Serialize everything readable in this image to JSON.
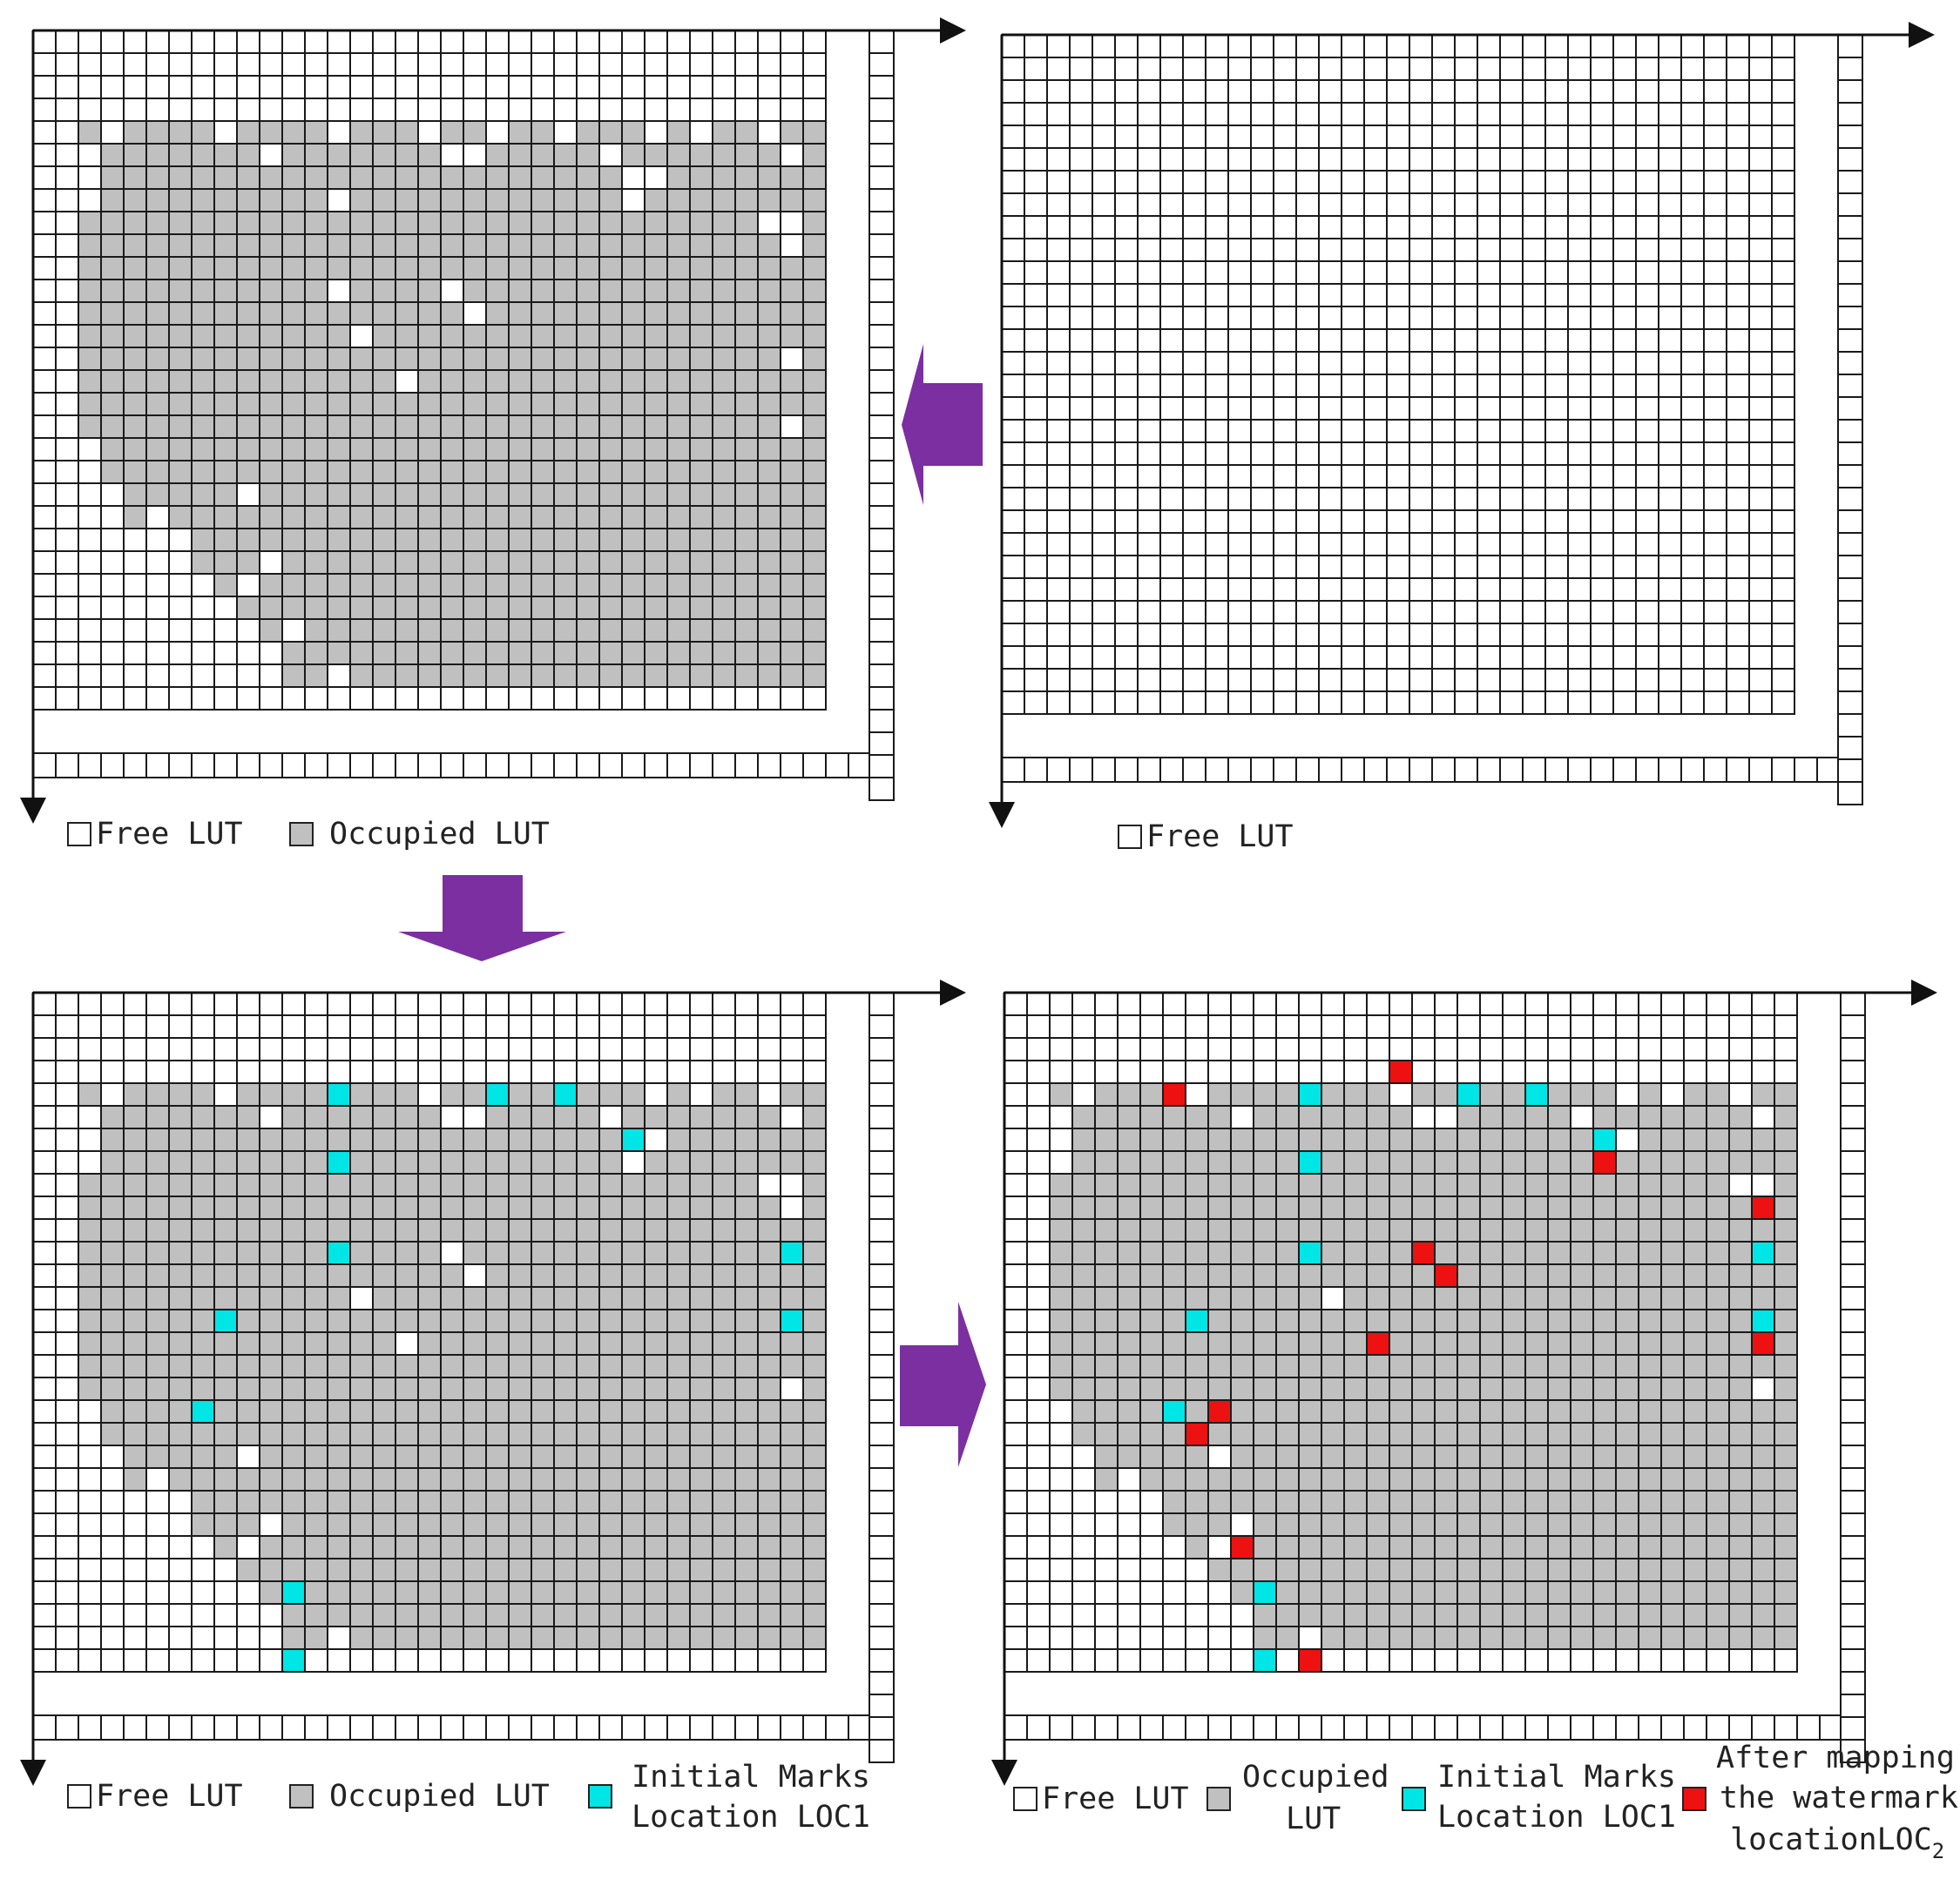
{
  "legends": {
    "top_left": {
      "free": "Free LUT",
      "occupied": "Occupied LUT"
    },
    "top_right": {
      "free": "Free LUT"
    },
    "bottom_left": {
      "free": "Free LUT",
      "occupied": "Occupied LUT",
      "initial_line1": "Initial Marks",
      "initial_line2": "Location LOC1"
    },
    "bottom_right": {
      "free": "Free LUT",
      "occupied_line1": "Occupied",
      "occupied_line2": "LUT",
      "initial_line1": "Initial Marks",
      "initial_line2": "Location LOC1",
      "after_line1": "After mapping",
      "after_line2": "the watermark",
      "after_line3": "locationLOC",
      "after_sub": "2"
    }
  },
  "colors": {
    "free": "#ffffff",
    "occupied": "#c0c0c0",
    "grid_line": "#1a1a1a",
    "initial_mark": "#00e5e5",
    "mapped_mark": "#ee1111",
    "arrow": "#7b2fa0"
  },
  "grid": {
    "rows": 30,
    "cols": 35
  },
  "occupied_row_extents": [
    null,
    null,
    null,
    null,
    [
      2,
      34
    ],
    [
      2,
      34
    ],
    [
      3,
      34
    ],
    [
      3,
      34
    ],
    [
      2,
      34
    ],
    [
      2,
      34
    ],
    [
      2,
      34
    ],
    [
      2,
      34
    ],
    [
      2,
      34
    ],
    [
      2,
      34
    ],
    [
      2,
      34
    ],
    [
      2,
      34
    ],
    [
      2,
      34
    ],
    [
      2,
      34
    ],
    [
      3,
      34
    ],
    [
      3,
      34
    ],
    [
      4,
      34
    ],
    [
      4,
      34
    ],
    [
      6,
      34
    ],
    [
      7,
      34
    ],
    [
      8,
      34
    ],
    [
      9,
      34
    ],
    [
      10,
      34
    ],
    [
      11,
      34
    ],
    [
      11,
      34
    ],
    null
  ],
  "free_holes": [
    [
      4,
      3
    ],
    [
      4,
      8
    ],
    [
      4,
      13
    ],
    [
      4,
      17
    ],
    [
      4,
      20
    ],
    [
      4,
      23
    ],
    [
      4,
      27
    ],
    [
      4,
      29
    ],
    [
      4,
      32
    ],
    [
      5,
      2
    ],
    [
      5,
      10
    ],
    [
      5,
      18
    ],
    [
      5,
      19
    ],
    [
      5,
      25
    ],
    [
      5,
      33
    ],
    [
      6,
      26
    ],
    [
      6,
      27
    ],
    [
      7,
      13
    ],
    [
      7,
      26
    ],
    [
      8,
      32
    ],
    [
      8,
      33
    ],
    [
      9,
      33
    ],
    [
      11,
      13
    ],
    [
      11,
      18
    ],
    [
      12,
      19
    ],
    [
      13,
      14
    ],
    [
      14,
      33
    ],
    [
      15,
      16
    ],
    [
      17,
      33
    ],
    [
      19,
      2
    ],
    [
      20,
      3
    ],
    [
      20,
      9
    ],
    [
      21,
      2
    ],
    [
      21,
      5
    ],
    [
      22,
      6
    ],
    [
      23,
      10
    ],
    [
      24,
      9
    ],
    [
      26,
      11
    ],
    [
      27,
      8
    ],
    [
      28,
      13
    ]
  ],
  "initial_marks": [
    [
      4,
      13
    ],
    [
      4,
      20
    ],
    [
      4,
      23
    ],
    [
      6,
      26
    ],
    [
      7,
      13
    ],
    [
      11,
      13
    ],
    [
      11,
      33
    ],
    [
      14,
      8
    ],
    [
      14,
      33
    ],
    [
      18,
      7
    ],
    [
      26,
      11
    ],
    [
      29,
      11
    ]
  ],
  "mapped_marks": [
    [
      3,
      17
    ],
    [
      4,
      7
    ],
    [
      7,
      26
    ],
    [
      9,
      33
    ],
    [
      11,
      18
    ],
    [
      12,
      19
    ],
    [
      15,
      16
    ],
    [
      15,
      33
    ],
    [
      18,
      9
    ],
    [
      19,
      8
    ],
    [
      24,
      10
    ],
    [
      29,
      13
    ]
  ]
}
